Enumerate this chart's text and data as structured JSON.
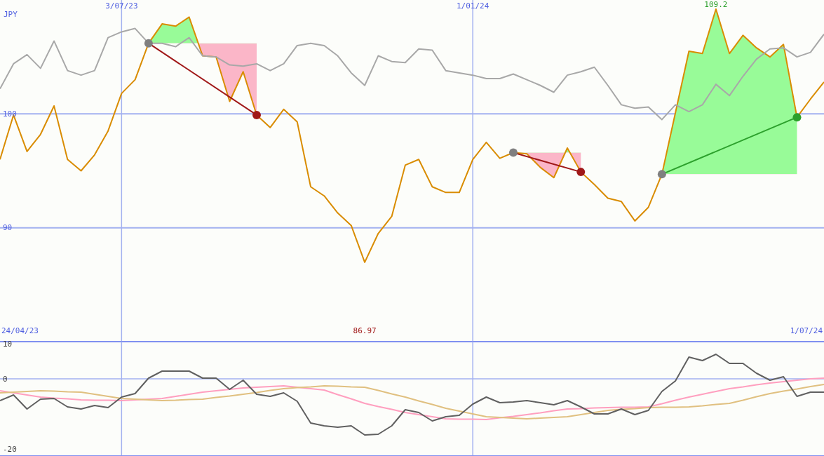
{
  "chart_data": [
    {
      "type": "line",
      "ylabel": "JPY",
      "xlim": [
        "2023-05-01",
        "2024-07-01"
      ],
      "ylim": [
        80,
        110
      ],
      "yticks": [
        90,
        100
      ],
      "xticks": [
        {
          "value": "2023-07-03",
          "label": "3/07/23"
        },
        {
          "value": "2024-01-01",
          "label": "1/01/24"
        }
      ],
      "grid": true,
      "annotations": [
        "24/04/23",
        "86.97",
        "1/07/24",
        {
          "text": "109.2",
          "x": "2024-05-06",
          "y": 109.2
        }
      ],
      "x": [
        "2023-05-01",
        "2023-05-08",
        "2023-05-15",
        "2023-05-22",
        "2023-05-29",
        "2023-06-05",
        "2023-06-12",
        "2023-06-19",
        "2023-06-26",
        "2023-07-03",
        "2023-07-10",
        "2023-07-17",
        "2023-07-24",
        "2023-07-31",
        "2023-08-07",
        "2023-08-14",
        "2023-08-21",
        "2023-08-28",
        "2023-09-04",
        "2023-09-11",
        "2023-09-18",
        "2023-09-25",
        "2023-10-02",
        "2023-10-09",
        "2023-10-16",
        "2023-10-23",
        "2023-10-30",
        "2023-11-06",
        "2023-11-13",
        "2023-11-20",
        "2023-11-27",
        "2023-12-04",
        "2023-12-11",
        "2023-12-18",
        "2023-12-25",
        "2024-01-01",
        "2024-01-08",
        "2024-01-15",
        "2024-01-22",
        "2024-01-29",
        "2024-02-05",
        "2024-02-12",
        "2024-02-19",
        "2024-02-26",
        "2024-03-04",
        "2024-03-11",
        "2024-03-18",
        "2024-03-25",
        "2024-04-01",
        "2024-04-08",
        "2024-04-15",
        "2024-04-22",
        "2024-04-29",
        "2024-05-06",
        "2024-05-13",
        "2024-05-20",
        "2024-05-27",
        "2024-06-03",
        "2024-06-10",
        "2024-06-17",
        "2024-06-24",
        "2024-07-01"
      ],
      "series": [
        {
          "color": "#d98c00",
          "values": [
            96.0,
            99.9,
            96.7,
            98.2,
            100.7,
            96.0,
            95.0,
            96.4,
            98.5,
            101.8,
            103.0,
            106.2,
            107.9,
            107.7,
            108.5,
            105.1,
            105.0,
            101.1,
            103.7,
            99.9,
            98.8,
            100.4,
            99.3,
            93.6,
            92.8,
            91.3,
            90.2,
            86.97,
            89.5,
            91.0,
            95.5,
            96.0,
            93.6,
            93.1,
            93.1,
            96.0,
            97.5,
            96.1,
            96.6,
            96.5,
            95.3,
            94.4,
            97.0,
            94.9,
            93.8,
            92.6,
            92.3,
            90.6,
            91.8,
            94.7,
            100.1,
            105.5,
            105.3,
            109.2,
            105.3,
            106.9,
            105.8,
            105.0,
            106.1,
            99.7,
            101.3,
            102.8
          ]
        },
        {
          "color": "#a8a8a8",
          "values": [
            102.2,
            104.4,
            105.2,
            104.0,
            106.4,
            103.8,
            103.4,
            103.8,
            106.7,
            107.2,
            107.5,
            106.2,
            106.2,
            105.9,
            106.7,
            105.1,
            105.0,
            104.3,
            104.2,
            104.4,
            103.8,
            104.4,
            106.0,
            106.2,
            106.0,
            105.1,
            103.6,
            102.5,
            105.1,
            104.6,
            104.5,
            105.7,
            105.6,
            103.8,
            103.6,
            103.4,
            103.1,
            103.1,
            103.5,
            103.0,
            102.5,
            101.9,
            103.4,
            103.7,
            104.1,
            102.5,
            100.8,
            100.5,
            100.6,
            99.5,
            100.8,
            100.2,
            100.8,
            102.6,
            101.6,
            103.3,
            104.8,
            105.7,
            105.8,
            105.0,
            105.4,
            107.0
          ]
        },
        {
          "x": [
            "2023-07-17",
            "2023-09-11"
          ],
          "values": [
            106.2,
            99.9
          ],
          "color": "#a01818",
          "marker": "circle"
        },
        {
          "x": [
            "2024-01-22",
            "2024-02-26"
          ],
          "values": [
            96.6,
            94.9
          ],
          "color": "#a01818",
          "marker": "circle"
        },
        {
          "x": [
            "2024-04-08",
            "2024-06-17"
          ],
          "values": [
            94.7,
            99.7
          ],
          "color": "#2ca02c",
          "marker": "circle"
        }
      ]
    },
    {
      "type": "line",
      "xlim": [
        "2023-05-01",
        "2024-07-01"
      ],
      "ylim": [
        -22,
        10.6
      ],
      "yticks": [
        -20,
        0,
        10
      ],
      "xticks": [
        {
          "value": "2023-07-03",
          "label": null
        },
        {
          "value": "2024-01-01",
          "label": null
        }
      ],
      "tick_labels": "y",
      "grid": "x",
      "ref_lines": [
        {
          "axis": "y",
          "value": 0
        }
      ],
      "x": [
        "2023-05-01",
        "2023-05-08",
        "2023-05-15",
        "2023-05-22",
        "2023-05-29",
        "2023-06-05",
        "2023-06-12",
        "2023-06-19",
        "2023-06-26",
        "2023-07-03",
        "2023-07-10",
        "2023-07-17",
        "2023-07-24",
        "2023-07-31",
        "2023-08-07",
        "2023-08-14",
        "2023-08-21",
        "2023-08-28",
        "2023-09-04",
        "2023-09-11",
        "2023-09-18",
        "2023-09-25",
        "2023-10-02",
        "2023-10-09",
        "2023-10-16",
        "2023-10-23",
        "2023-10-30",
        "2023-11-06",
        "2023-11-13",
        "2023-11-20",
        "2023-11-27",
        "2023-12-04",
        "2023-12-11",
        "2023-12-18",
        "2023-12-25",
        "2024-01-01",
        "2024-01-08",
        "2024-01-15",
        "2024-01-22",
        "2024-01-29",
        "2024-02-05",
        "2024-02-12",
        "2024-02-19",
        "2024-02-26",
        "2024-03-04",
        "2024-03-11",
        "2024-03-18",
        "2024-03-25",
        "2024-04-01",
        "2024-04-08",
        "2024-04-15",
        "2024-04-22",
        "2024-04-29",
        "2024-05-06",
        "2024-05-13",
        "2024-05-20",
        "2024-05-27",
        "2024-06-03",
        "2024-06-10",
        "2024-06-17",
        "2024-06-24",
        "2024-07-01"
      ],
      "series": [
        {
          "color": "#ff9fbf",
          "values": [
            -3.4,
            -4.0,
            -4.6,
            -5.2,
            -5.5,
            -5.7,
            -6.0,
            -6.1,
            -6.1,
            -6.2,
            -6.0,
            -5.8,
            -5.6,
            -5.0,
            -4.4,
            -3.8,
            -3.4,
            -3.0,
            -2.6,
            -2.4,
            -2.2,
            -2.0,
            -2.4,
            -2.8,
            -3.2,
            -4.5,
            -5.7,
            -7.0,
            -7.9,
            -8.7,
            -9.6,
            -10.2,
            -10.8,
            -11.4,
            -11.5,
            -11.5,
            -11.6,
            -11.1,
            -10.7,
            -10.2,
            -9.7,
            -9.1,
            -8.6,
            -8.5,
            -8.3,
            -8.2,
            -8.1,
            -8.1,
            -8.0,
            -7.1,
            -6.1,
            -5.2,
            -4.4,
            -3.6,
            -2.8,
            -2.3,
            -1.7,
            -1.2,
            -0.8,
            -0.4,
            0.0,
            0.2
          ]
        },
        {
          "color": "#e0c080",
          "values": [
            -4.0,
            -3.8,
            -3.6,
            -3.4,
            -3.5,
            -3.7,
            -3.8,
            -4.4,
            -5.0,
            -5.6,
            -5.8,
            -6.0,
            -6.2,
            -6.1,
            -5.9,
            -5.8,
            -5.3,
            -4.9,
            -4.4,
            -3.9,
            -3.3,
            -2.8,
            -2.5,
            -2.3,
            -2.0,
            -2.1,
            -2.3,
            -2.4,
            -3.3,
            -4.3,
            -5.2,
            -6.3,
            -7.3,
            -8.4,
            -9.2,
            -10.0,
            -10.8,
            -11.0,
            -11.2,
            -11.4,
            -11.2,
            -11.0,
            -10.8,
            -10.2,
            -9.6,
            -9.0,
            -8.7,
            -8.5,
            -8.2,
            -8.1,
            -8.1,
            -8.0,
            -7.7,
            -7.3,
            -7.0,
            -6.1,
            -5.1,
            -4.2,
            -3.5,
            -2.9,
            -2.2,
            -1.6
          ]
        },
        {
          "color": "#606060",
          "values": [
            -6.2,
            -4.6,
            -8.6,
            -5.8,
            -5.6,
            -8.0,
            -8.6,
            -7.6,
            -8.2,
            -5.2,
            -4.2,
            0.2,
            2.2,
            2.2,
            2.2,
            0.2,
            0.2,
            -3.0,
            -0.4,
            -4.4,
            -5.0,
            -4.0,
            -6.4,
            -12.6,
            -13.4,
            -13.8,
            -13.4,
            -16.0,
            -15.8,
            -13.4,
            -8.8,
            -9.6,
            -12.0,
            -10.8,
            -10.4,
            -7.2,
            -5.2,
            -6.8,
            -6.6,
            -6.2,
            -6.8,
            -7.4,
            -6.2,
            -8.0,
            -10.0,
            -10.0,
            -8.6,
            -10.2,
            -9.0,
            -3.6,
            -0.6,
            6.2,
            5.2,
            7.0,
            4.4,
            4.4,
            1.6,
            -0.4,
            0.6,
            -5.0,
            -3.8,
            -3.8
          ]
        }
      ]
    }
  ]
}
